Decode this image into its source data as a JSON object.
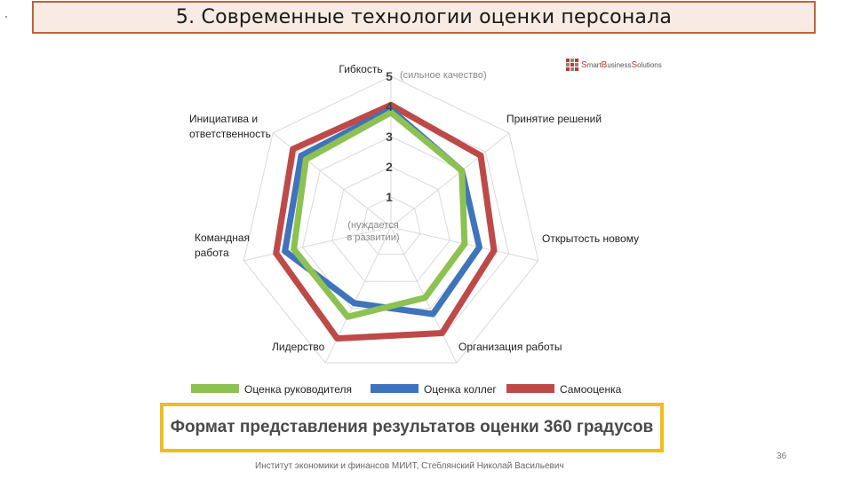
{
  "header": {
    "title": "5. Современные технологии оценки персонала"
  },
  "logo": {
    "words": [
      {
        "initial": "S",
        "rest": "mart"
      },
      {
        "initial": "B",
        "rest": "usiness"
      },
      {
        "initial": "S",
        "rest": "olutions"
      }
    ],
    "colors": [
      "#c0392b",
      "#7f8c8d",
      "#c0392b",
      "#7f8c8d",
      "#c0392b",
      "#7f8c8d",
      "#c0392b",
      "#7f8c8d",
      "#c0392b"
    ]
  },
  "chart_data": {
    "type": "radar",
    "axes": [
      "Гибкость",
      "Принятие решений",
      "Открытость новому",
      "Организация работы",
      "Лидерство",
      "Командная работа",
      "Инициатива и ответственность"
    ],
    "rlim": [
      0,
      5
    ],
    "ticks": [
      "1",
      "2",
      "3",
      "4",
      "5"
    ],
    "annotations": {
      "top": "(сильное качество)",
      "bottom": "(нуждается в развитии)"
    },
    "series": [
      {
        "name": "Оценка руководителя",
        "color": "#8dc152",
        "values": [
          3.8,
          3.0,
          2.5,
          2.6,
          3.3,
          3.3,
          3.6
        ]
      },
      {
        "name": "Оценка коллег",
        "color": "#3f74bc",
        "values": [
          3.9,
          3.0,
          3.0,
          3.2,
          2.8,
          3.6,
          3.8
        ]
      },
      {
        "name": "Самооценка",
        "color": "#bd4a48",
        "values": [
          4.05,
          3.8,
          3.5,
          3.9,
          4.1,
          3.9,
          4.15
        ]
      }
    ],
    "legend_position": "bottom",
    "grid": true
  },
  "footer": {
    "caption": "Формат представления результатов оценки 360 градусов",
    "credit": "Институт экономики и финансов МИИТ, Стеблянский Николай Васильевич",
    "page": "36"
  }
}
